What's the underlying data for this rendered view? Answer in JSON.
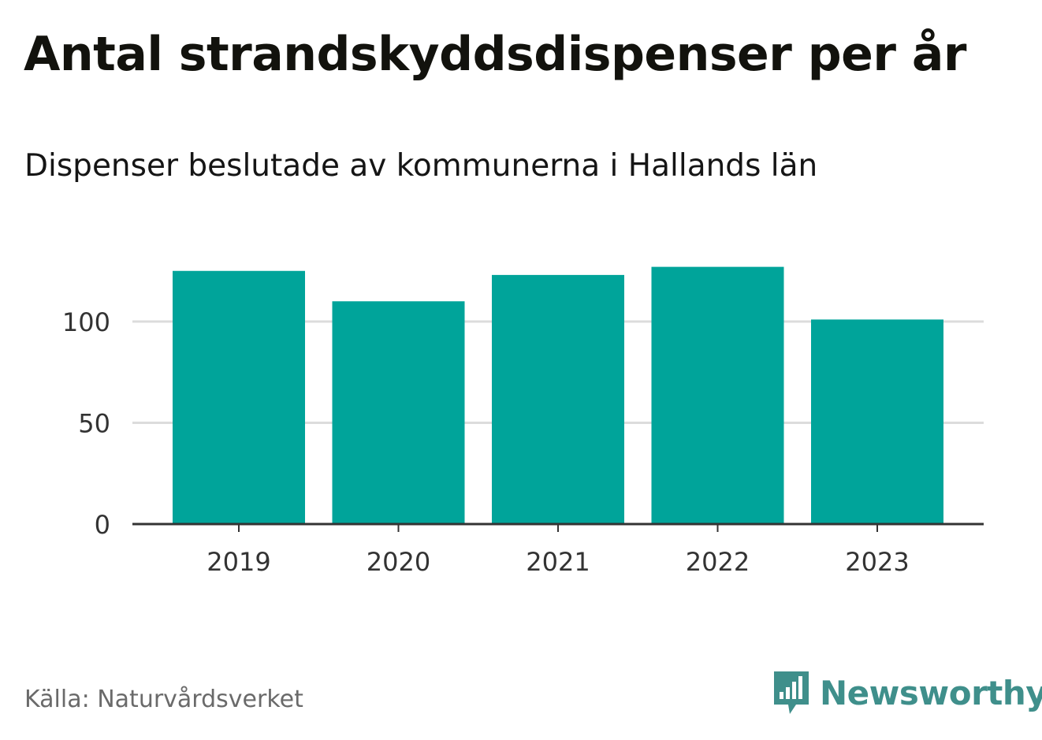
{
  "header": {
    "title": "Antal strandskyddsdispenser per år",
    "subtitle": "Dispenser beslutade av kommunerna i Hallands län"
  },
  "footer": {
    "source": "Källa: Naturvårdsverket",
    "brand": "Newsworthy",
    "brand_color": "#3f8f8b"
  },
  "chart_data": {
    "type": "bar",
    "title": "Antal strandskyddsdispenser per år",
    "subtitle": "Dispenser beslutade av kommunerna i Hallands län",
    "xlabel": "",
    "ylabel": "",
    "categories": [
      "2019",
      "2020",
      "2021",
      "2022",
      "2023"
    ],
    "values": [
      125,
      110,
      123,
      127,
      101
    ],
    "ylim": [
      0,
      135
    ],
    "yticks": [
      0,
      50,
      100
    ],
    "ytick_labels": [
      "0",
      "50",
      "100"
    ],
    "grid": true,
    "bar_color": "#00a49a"
  }
}
